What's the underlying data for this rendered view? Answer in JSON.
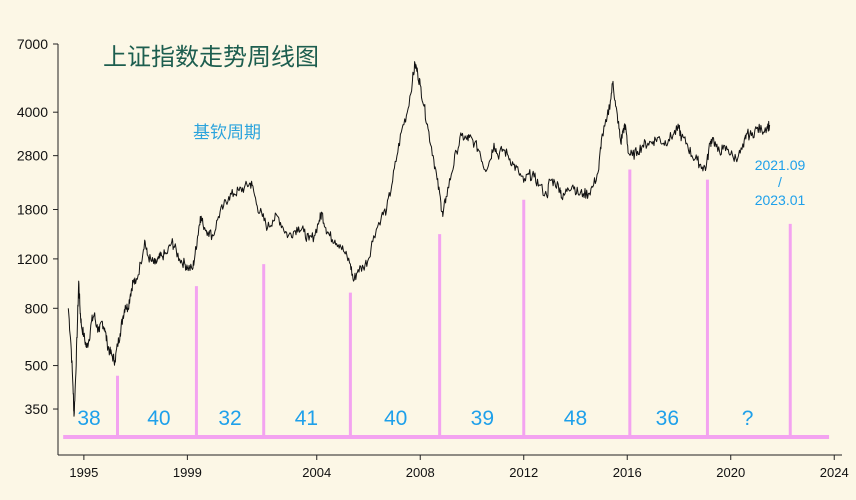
{
  "chart_data": {
    "type": "line",
    "title": "上证指数走势周线图",
    "subtitle": "基钦周期",
    "xlabel": "",
    "ylabel": "",
    "y_scale": "log",
    "ylim": [
      240,
      7000
    ],
    "xlim": [
      1994.0,
      2024.3
    ],
    "y_ticks": [
      "350",
      "500",
      "800",
      "1200",
      "1800",
      "2800",
      "4000",
      "7000"
    ],
    "x_ticks": [
      "1995",
      "1999",
      "2004",
      "2008",
      "2012",
      "2016",
      "2020",
      "2024"
    ],
    "series": [
      {
        "values": [
          [
            1994.4,
            800
          ],
          [
            1994.5,
            600
          ],
          [
            1994.58,
            420
          ],
          [
            1994.62,
            330
          ],
          [
            1994.68,
            450
          ],
          [
            1994.75,
            700
          ],
          [
            1994.8,
            1000
          ],
          [
            1994.85,
            800
          ],
          [
            1994.9,
            700
          ],
          [
            1995.0,
            640
          ],
          [
            1995.1,
            580
          ],
          [
            1995.2,
            620
          ],
          [
            1995.3,
            720
          ],
          [
            1995.4,
            760
          ],
          [
            1995.5,
            690
          ],
          [
            1995.6,
            660
          ],
          [
            1995.7,
            720
          ],
          [
            1995.8,
            680
          ],
          [
            1995.9,
            600
          ],
          [
            1996.0,
            560
          ],
          [
            1996.1,
            540
          ],
          [
            1996.2,
            520
          ],
          [
            1996.3,
            590
          ],
          [
            1996.4,
            650
          ],
          [
            1996.5,
            740
          ],
          [
            1996.6,
            820
          ],
          [
            1996.7,
            800
          ],
          [
            1996.8,
            900
          ],
          [
            1996.9,
            1000
          ],
          [
            1997.0,
            980
          ],
          [
            1997.2,
            1160
          ],
          [
            1997.35,
            1400
          ],
          [
            1997.45,
            1240
          ],
          [
            1997.6,
            1180
          ],
          [
            1997.75,
            1150
          ],
          [
            1997.9,
            1200
          ],
          [
            1998.0,
            1230
          ],
          [
            1998.2,
            1250
          ],
          [
            1998.4,
            1380
          ],
          [
            1998.5,
            1320
          ],
          [
            1998.7,
            1200
          ],
          [
            1998.9,
            1150
          ],
          [
            1999.0,
            1120
          ],
          [
            1999.2,
            1100
          ],
          [
            1999.3,
            1250
          ],
          [
            1999.4,
            1450
          ],
          [
            1999.5,
            1700
          ],
          [
            1999.6,
            1600
          ],
          [
            1999.8,
            1500
          ],
          [
            2000.0,
            1450
          ],
          [
            2000.2,
            1700
          ],
          [
            2000.4,
            1850
          ],
          [
            2000.6,
            2000
          ],
          [
            2000.8,
            2050
          ],
          [
            2001.0,
            2100
          ],
          [
            2001.2,
            2150
          ],
          [
            2001.4,
            2230
          ],
          [
            2001.5,
            2200
          ],
          [
            2001.7,
            1850
          ],
          [
            2001.9,
            1700
          ],
          [
            2002.1,
            1550
          ],
          [
            2002.3,
            1650
          ],
          [
            2002.5,
            1700
          ],
          [
            2002.7,
            1550
          ],
          [
            2002.9,
            1450
          ],
          [
            2003.1,
            1500
          ],
          [
            2003.3,
            1560
          ],
          [
            2003.5,
            1500
          ],
          [
            2003.7,
            1400
          ],
          [
            2003.9,
            1450
          ],
          [
            2004.1,
            1650
          ],
          [
            2004.2,
            1750
          ],
          [
            2004.35,
            1550
          ],
          [
            2004.5,
            1450
          ],
          [
            2004.7,
            1400
          ],
          [
            2004.9,
            1350
          ],
          [
            2005.1,
            1250
          ],
          [
            2005.3,
            1150
          ],
          [
            2005.42,
            1000
          ],
          [
            2005.6,
            1100
          ],
          [
            2005.8,
            1120
          ],
          [
            2006.0,
            1200
          ],
          [
            2006.2,
            1450
          ],
          [
            2006.5,
            1700
          ],
          [
            2006.7,
            1800
          ],
          [
            2006.9,
            2200
          ],
          [
            2007.1,
            2800
          ],
          [
            2007.3,
            3500
          ],
          [
            2007.5,
            4000
          ],
          [
            2007.7,
            5200
          ],
          [
            2007.8,
            5950
          ],
          [
            2007.9,
            5500
          ],
          [
            2008.0,
            5000
          ],
          [
            2008.15,
            4200
          ],
          [
            2008.3,
            3500
          ],
          [
            2008.5,
            2800
          ],
          [
            2008.65,
            2300
          ],
          [
            2008.8,
            1900
          ],
          [
            2008.87,
            1700
          ],
          [
            2009.0,
            2000
          ],
          [
            2009.2,
            2400
          ],
          [
            2009.4,
            2900
          ],
          [
            2009.6,
            3300
          ],
          [
            2009.8,
            3200
          ],
          [
            2009.9,
            3250
          ],
          [
            2010.1,
            3100
          ],
          [
            2010.3,
            2900
          ],
          [
            2010.5,
            2500
          ],
          [
            2010.7,
            2700
          ],
          [
            2010.85,
            3100
          ],
          [
            2011.0,
            2800
          ],
          [
            2011.2,
            2950
          ],
          [
            2011.4,
            2800
          ],
          [
            2011.6,
            2600
          ],
          [
            2011.8,
            2450
          ],
          [
            2012.0,
            2250
          ],
          [
            2012.2,
            2400
          ],
          [
            2012.4,
            2350
          ],
          [
            2012.6,
            2200
          ],
          [
            2012.9,
            2000
          ],
          [
            2013.0,
            2300
          ],
          [
            2013.2,
            2250
          ],
          [
            2013.4,
            2150
          ],
          [
            2013.5,
            1950
          ],
          [
            2013.7,
            2150
          ],
          [
            2013.9,
            2200
          ],
          [
            2014.1,
            2050
          ],
          [
            2014.3,
            2050
          ],
          [
            2014.5,
            2050
          ],
          [
            2014.7,
            2200
          ],
          [
            2014.9,
            2500
          ],
          [
            2015.0,
            3200
          ],
          [
            2015.2,
            3700
          ],
          [
            2015.35,
            4400
          ],
          [
            2015.45,
            5150
          ],
          [
            2015.55,
            4200
          ],
          [
            2015.65,
            3700
          ],
          [
            2015.75,
            3100
          ],
          [
            2015.85,
            3500
          ],
          [
            2015.95,
            3500
          ],
          [
            2016.05,
            2850
          ],
          [
            2016.2,
            2800
          ],
          [
            2016.4,
            2900
          ],
          [
            2016.6,
            3050
          ],
          [
            2016.8,
            3100
          ],
          [
            2017.0,
            3150
          ],
          [
            2017.2,
            3250
          ],
          [
            2017.4,
            3100
          ],
          [
            2017.6,
            3200
          ],
          [
            2017.8,
            3350
          ],
          [
            2018.0,
            3500
          ],
          [
            2018.1,
            3250
          ],
          [
            2018.3,
            3100
          ],
          [
            2018.5,
            2800
          ],
          [
            2018.7,
            2700
          ],
          [
            2018.9,
            2550
          ],
          [
            2019.05,
            2550
          ],
          [
            2019.2,
            3100
          ],
          [
            2019.3,
            3250
          ],
          [
            2019.5,
            2900
          ],
          [
            2019.7,
            2950
          ],
          [
            2019.9,
            2950
          ],
          [
            2020.1,
            2750
          ],
          [
            2020.3,
            2800
          ],
          [
            2020.5,
            3000
          ],
          [
            2020.6,
            3350
          ],
          [
            2020.8,
            3300
          ],
          [
            2021.0,
            3500
          ],
          [
            2021.2,
            3450
          ],
          [
            2021.4,
            3550
          ],
          [
            2021.5,
            3600
          ]
        ]
      }
    ],
    "cycle_markers": [
      {
        "x": 1996.3,
        "y_top": 460
      },
      {
        "x": 1999.35,
        "y_top": 960
      },
      {
        "x": 2001.95,
        "y_top": 1150
      },
      {
        "x": 2005.3,
        "y_top": 910
      },
      {
        "x": 2008.75,
        "y_top": 1470
      },
      {
        "x": 2012.0,
        "y_top": 1950
      },
      {
        "x": 2016.1,
        "y_top": 2500
      },
      {
        "x": 2019.1,
        "y_top": 2300
      },
      {
        "x": 2022.3,
        "y_top": 1600
      }
    ],
    "cycle_lengths": [
      {
        "x": 1995.2,
        "label": "38"
      },
      {
        "x": 1997.9,
        "label": "40"
      },
      {
        "x": 2000.65,
        "label": "32"
      },
      {
        "x": 2003.6,
        "label": "41"
      },
      {
        "x": 2007.05,
        "label": "40"
      },
      {
        "x": 2010.4,
        "label": "39"
      },
      {
        "x": 2014.0,
        "label": "48"
      },
      {
        "x": 2017.55,
        "label": "36"
      },
      {
        "x": 2020.65,
        "label": "?"
      }
    ],
    "forecast_range": {
      "line1": "2021.09",
      "line2": "/",
      "line3": "2023.01"
    },
    "colors": {
      "line": "#111111",
      "marker": "#f3a3f0",
      "label": "#1ea0ea",
      "title": "#1d5e4f",
      "subtitle": "#2aa3dc"
    }
  }
}
